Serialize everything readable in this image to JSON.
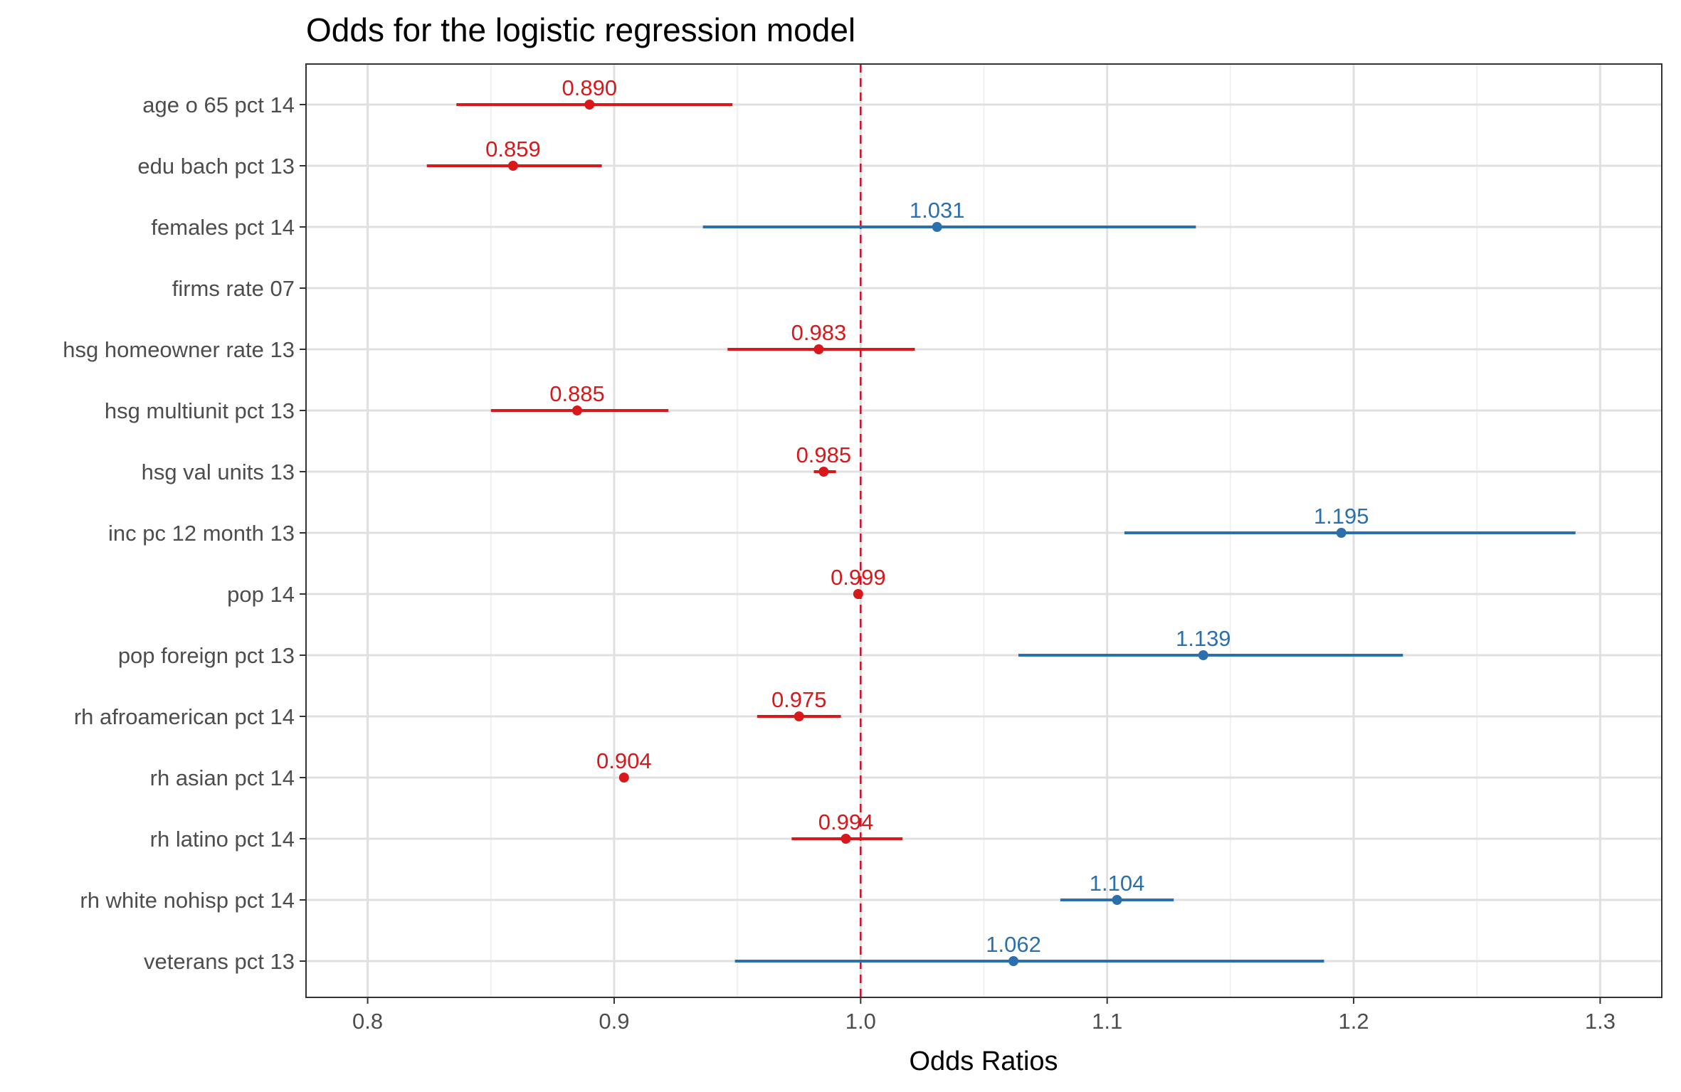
{
  "chart_data": {
    "type": "forest",
    "title": "Odds for the logistic regression model",
    "xlabel": "Odds Ratios",
    "xlim": [
      0.775,
      1.325
    ],
    "x_ticks": [
      0.8,
      0.9,
      1.0,
      1.1,
      1.2,
      1.3
    ],
    "x_tick_labels": [
      "0.8",
      "0.9",
      "1.0",
      "1.1",
      "1.2",
      "1.3"
    ],
    "reference_line": 1.0,
    "grid": true,
    "colors": {
      "below_one": "#d7191c",
      "above_one": "#2c6fad",
      "reference": "#c8102e",
      "grid_major": "#e0e0e0",
      "grid_minor": "#f0f0f0",
      "panel_border": "#333333"
    },
    "terms": [
      {
        "term": "age o 65 pct 14",
        "estimate": 0.89,
        "label": "0.890",
        "conf_low": 0.836,
        "conf_high": 0.948
      },
      {
        "term": "edu bach pct 13",
        "estimate": 0.859,
        "label": "0.859",
        "conf_low": 0.824,
        "conf_high": 0.895
      },
      {
        "term": "females pct 14",
        "estimate": 1.031,
        "label": "1.031",
        "conf_low": 0.936,
        "conf_high": 1.136
      },
      {
        "term": "firms rate 07",
        "estimate": null,
        "label": "",
        "conf_low": null,
        "conf_high": null
      },
      {
        "term": "hsg homeowner rate 13",
        "estimate": 0.983,
        "label": "0.983",
        "conf_low": 0.946,
        "conf_high": 1.022
      },
      {
        "term": "hsg multiunit pct 13",
        "estimate": 0.885,
        "label": "0.885",
        "conf_low": 0.85,
        "conf_high": 0.922
      },
      {
        "term": "hsg val units 13",
        "estimate": 0.985,
        "label": "0.985",
        "conf_low": 0.981,
        "conf_high": 0.99
      },
      {
        "term": "inc pc 12 month 13",
        "estimate": 1.195,
        "label": "1.195",
        "conf_low": 1.107,
        "conf_high": 1.29
      },
      {
        "term": "pop 14",
        "estimate": 0.999,
        "label": "0.999",
        "conf_low": 0.999,
        "conf_high": 0.999
      },
      {
        "term": "pop foreign pct 13",
        "estimate": 1.139,
        "label": "1.139",
        "conf_low": 1.064,
        "conf_high": 1.22
      },
      {
        "term": "rh afroamerican pct 14",
        "estimate": 0.975,
        "label": "0.975",
        "conf_low": 0.958,
        "conf_high": 0.992
      },
      {
        "term": "rh asian pct 14",
        "estimate": 0.904,
        "label": "0.904",
        "conf_low": 0.904,
        "conf_high": 0.904
      },
      {
        "term": "rh latino pct 14",
        "estimate": 0.994,
        "label": "0.994",
        "conf_low": 0.972,
        "conf_high": 1.017
      },
      {
        "term": "rh white nohisp pct 14",
        "estimate": 1.104,
        "label": "1.104",
        "conf_low": 1.081,
        "conf_high": 1.127
      },
      {
        "term": "veterans pct 13",
        "estimate": 1.062,
        "label": "1.062",
        "conf_low": 0.949,
        "conf_high": 1.188
      }
    ]
  }
}
